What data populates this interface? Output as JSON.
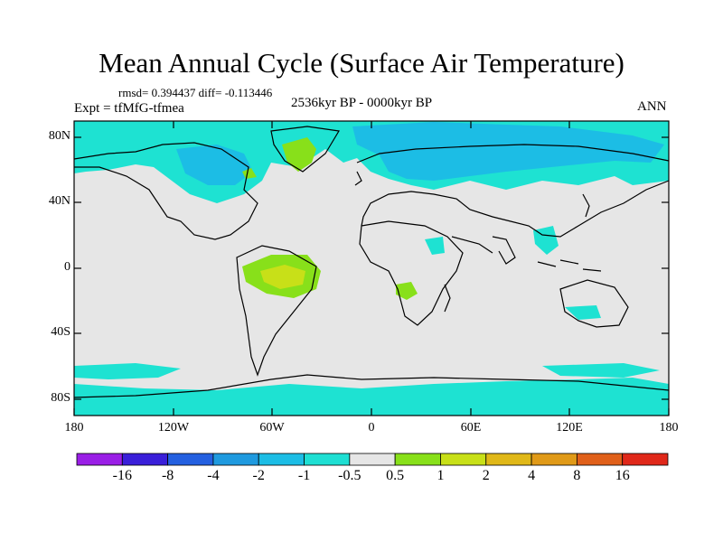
{
  "title": "Mean Annual Cycle (Surface Air Temperature)",
  "stats": "rmsd= 0.394437 diff= -0.113446",
  "experiment": "Expt = tfMfG-tfmea",
  "period": "2536kyr BP - 0000kyr BP",
  "season": "ANN",
  "axes": {
    "y_ticks": [
      "80N",
      "40N",
      "0",
      "40S",
      "80S"
    ],
    "x_ticks": [
      "180",
      "120W",
      "60W",
      "0",
      "60E",
      "120E",
      "180"
    ]
  },
  "colorbar": {
    "colors": [
      "#9a1ee6",
      "#3a1fd9",
      "#2460e0",
      "#1f9adf",
      "#1cbde5",
      "#1edfd3",
      "#e6e6e6",
      "#88e01a",
      "#c8e018",
      "#e0b818",
      "#e09a18",
      "#e0601a",
      "#e0281a"
    ],
    "labels": [
      "-16",
      "-8",
      "-4",
      "-2",
      "-1",
      "-0.5",
      "0.5",
      "1",
      "2",
      "4",
      "8",
      "16"
    ]
  },
  "palette": {
    "background_field": "#e6e6e6",
    "light_cyan": "#1ee2d2",
    "medium_blue": "#1cbde5",
    "green": "#88e01a",
    "yellow_green": "#c8e018",
    "coastline": "#000000"
  }
}
